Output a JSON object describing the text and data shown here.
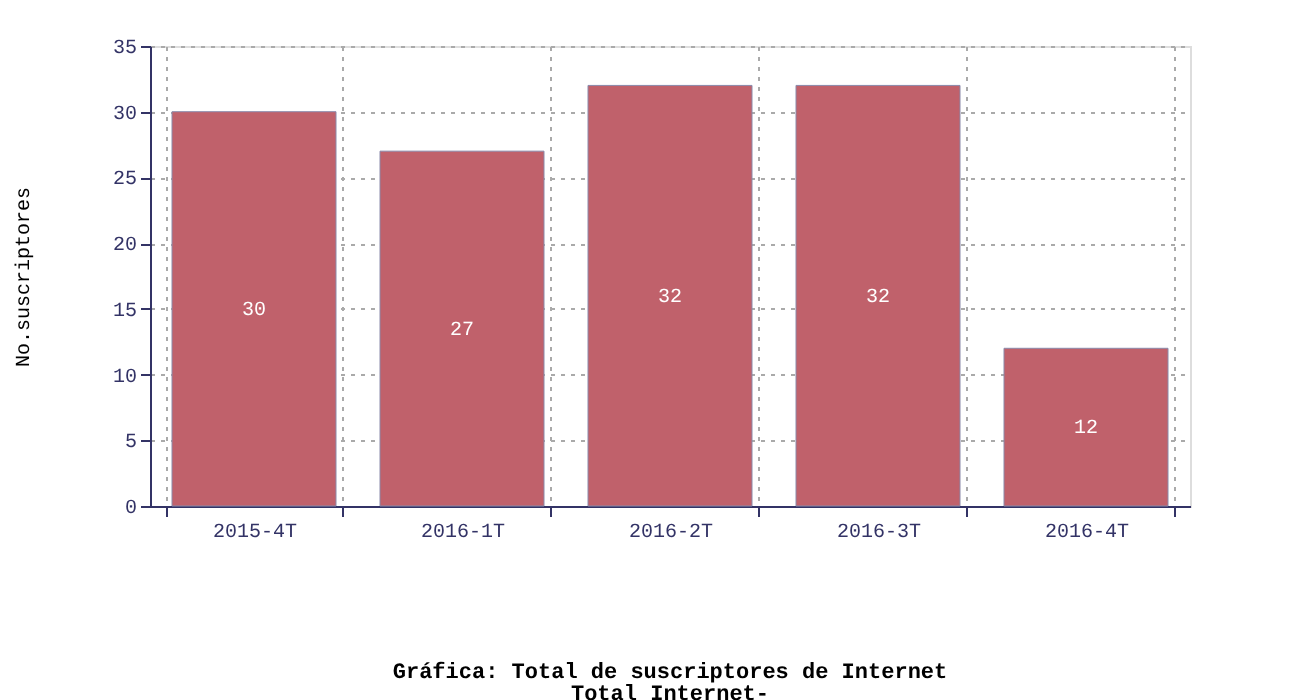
{
  "chart_data": {
    "type": "bar",
    "title": "Gráfica: Total de suscriptores de Internet",
    "subtitle": "Total Internet-",
    "ylabel": "No.suscriptores",
    "categories": [
      "2015-4T",
      "2016-1T",
      "2016-2T",
      "2016-3T",
      "2016-4T"
    ],
    "values": [
      30,
      27,
      32,
      32,
      12
    ],
    "color": "#c0616b",
    "ylim": [
      0,
      35
    ],
    "yticks": [
      0,
      5,
      10,
      15,
      20,
      25,
      30,
      35
    ],
    "grid": true,
    "data_labels": true
  }
}
